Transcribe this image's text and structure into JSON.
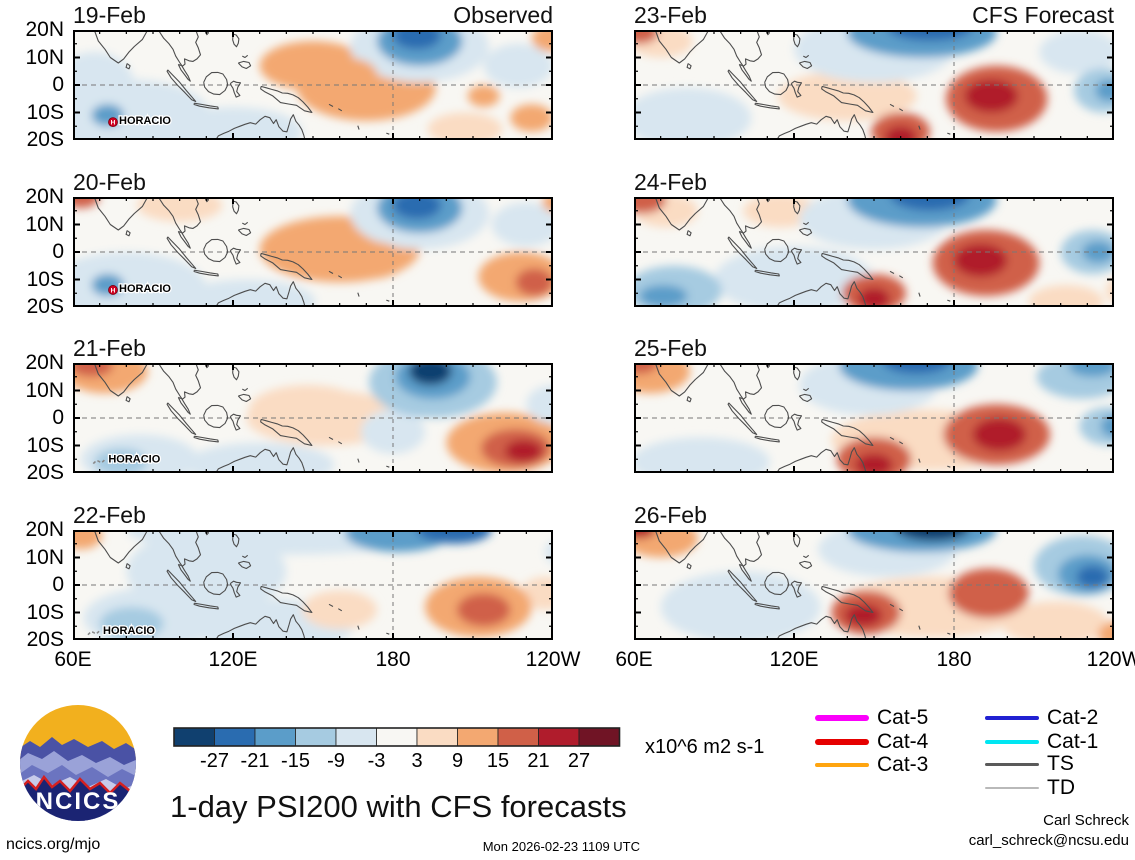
{
  "chart_data": {
    "type": "heatmap",
    "title": "1-day PSI200 with CFS forecasts",
    "field": "PSI200 anomaly",
    "units": "x10^6 m2 s-1",
    "column_headers": {
      "left": "Observed",
      "right": "CFS Forecast"
    },
    "lat_tick_labels": [
      "20N",
      "10N",
      "0",
      "10S",
      "20S"
    ],
    "lat_tick_values": [
      20,
      10,
      0,
      -10,
      -20
    ],
    "lon_tick_labels": [
      "60E",
      "120E",
      "180",
      "120W"
    ],
    "lon_tick_values": [
      60,
      120,
      180,
      240
    ],
    "lon_range_deg": [
      60,
      240
    ],
    "lat_range_deg": [
      -20,
      20
    ],
    "grid_dashed": {
      "equator": true,
      "dateline_180": true
    },
    "colorbar": {
      "levels": [
        -27,
        -21,
        -15,
        -9,
        -3,
        3,
        9,
        15,
        21,
        27
      ],
      "colors": [
        "#10406f",
        "#2a6cb0",
        "#5b9dc9",
        "#a6cbe1",
        "#d8e6f0",
        "#f8f7f3",
        "#fadcc3",
        "#f3a871",
        "#d06048",
        "#b01c2c",
        "#701425"
      ]
    },
    "panels": [
      {
        "date_label": "19-Feb",
        "corner_label": "Observed",
        "column": "left",
        "row": 0,
        "storms": [
          {
            "name": "HORACIO",
            "symbol": "hurricane",
            "lon": 75,
            "lat": -13.5
          }
        ],
        "anomaly_centers": [
          [
            82,
            -12,
            30,
            14,
            -9
          ],
          [
            73,
            -11,
            6,
            4,
            -18
          ],
          [
            120,
            -17,
            26,
            9,
            -6
          ],
          [
            68,
            0,
            15,
            12,
            -6
          ],
          [
            150,
            7,
            20,
            9,
            9
          ],
          [
            170,
            -1,
            26,
            12,
            9
          ],
          [
            162,
            4,
            12,
            6,
            12
          ],
          [
            207,
            -16,
            14,
            6,
            6
          ],
          [
            232,
            -12,
            8,
            5,
            12
          ],
          [
            214,
            -4,
            6,
            4,
            9
          ],
          [
            190,
            14,
            26,
            13,
            -9
          ],
          [
            190,
            16,
            16,
            9,
            -18
          ],
          [
            189,
            18,
            9,
            5,
            -27
          ],
          [
            227,
            7,
            13,
            8,
            -6
          ],
          [
            240,
            17,
            8,
            5,
            9
          ]
        ]
      },
      {
        "date_label": "20-Feb",
        "corner_label": "",
        "column": "left",
        "row": 1,
        "storms": [
          {
            "name": "HORACIO",
            "symbol": "hurricane",
            "lon": 75,
            "lat": -13.8
          }
        ],
        "anomaly_centers": [
          [
            80,
            -13,
            30,
            13,
            -9
          ],
          [
            73,
            -12,
            6,
            4,
            -18
          ],
          [
            63,
            20,
            7,
            4,
            15
          ],
          [
            100,
            17,
            16,
            6,
            6
          ],
          [
            125,
            -18,
            26,
            8,
            -6
          ],
          [
            160,
            1,
            30,
            12,
            9
          ],
          [
            170,
            -3,
            15,
            7,
            12
          ],
          [
            190,
            14,
            26,
            13,
            -9
          ],
          [
            190,
            16,
            16,
            9,
            -18
          ],
          [
            189,
            17,
            9,
            5,
            -27
          ],
          [
            228,
            -9,
            16,
            9,
            9
          ],
          [
            233,
            -11,
            7,
            5,
            15
          ],
          [
            230,
            10,
            13,
            8,
            -6
          ],
          [
            243,
            18,
            7,
            4,
            9
          ]
        ]
      },
      {
        "date_label": "21-Feb",
        "corner_label": "",
        "column": "left",
        "row": 2,
        "storms": [
          {
            "name": "HORACIO",
            "symbol": "track",
            "lon": 71,
            "lat": -15.5
          }
        ],
        "anomaly_centers": [
          [
            72,
            17,
            16,
            8,
            12
          ],
          [
            67,
            19,
            8,
            4,
            18
          ],
          [
            85,
            -15,
            22,
            9,
            -9
          ],
          [
            78,
            -16,
            10,
            5,
            -12
          ],
          [
            130,
            -17,
            28,
            8,
            -6
          ],
          [
            155,
            0,
            30,
            10,
            6
          ],
          [
            148,
            3,
            22,
            9,
            6
          ],
          [
            195,
            13,
            24,
            13,
            -12
          ],
          [
            195,
            15,
            14,
            8,
            -21
          ],
          [
            194,
            17,
            8,
            5,
            -30
          ],
          [
            222,
            -9,
            22,
            11,
            9
          ],
          [
            226,
            -11,
            13,
            7,
            15
          ],
          [
            229,
            -12,
            7,
            4,
            21
          ],
          [
            240,
            5,
            10,
            7,
            -9
          ],
          [
            180,
            -5,
            12,
            8,
            -6
          ]
        ]
      },
      {
        "date_label": "22-Feb",
        "corner_label": "",
        "column": "left",
        "row": 3,
        "storms": [
          {
            "name": "HORACIO",
            "symbol": "track",
            "lon": 69,
            "lat": -17
          }
        ],
        "anomaly_centers": [
          [
            63,
            18,
            8,
            5,
            9
          ],
          [
            90,
            -12,
            26,
            11,
            -9
          ],
          [
            82,
            -14,
            12,
            6,
            -12
          ],
          [
            140,
            20,
            60,
            9,
            -9
          ],
          [
            182,
            19,
            20,
            7,
            -18
          ],
          [
            203,
            20,
            14,
            5,
            -24
          ],
          [
            135,
            -15,
            30,
            10,
            -6
          ],
          [
            110,
            5,
            30,
            15,
            -6
          ],
          [
            160,
            -9,
            14,
            7,
            6
          ],
          [
            212,
            -8,
            20,
            11,
            12
          ],
          [
            214,
            -9,
            10,
            6,
            18
          ],
          [
            237,
            -3,
            9,
            6,
            6
          ],
          [
            243,
            12,
            6,
            5,
            -6
          ]
        ]
      },
      {
        "date_label": "23-Feb",
        "corner_label": "CFS Forecast",
        "column": "right",
        "row": 0,
        "storms": [],
        "anomaly_centers": [
          [
            62,
            19,
            7,
            4,
            15
          ],
          [
            70,
            16,
            12,
            6,
            6
          ],
          [
            80,
            -12,
            24,
            11,
            -9
          ],
          [
            150,
            13,
            30,
            12,
            -9
          ],
          [
            168,
            19,
            28,
            9,
            -18
          ],
          [
            171,
            21,
            16,
            5,
            -27
          ],
          [
            140,
            -4,
            26,
            9,
            6
          ],
          [
            160,
            -17,
            11,
            7,
            15
          ],
          [
            160,
            -19,
            6,
            4,
            24
          ],
          [
            196,
            -5,
            19,
            12,
            15
          ],
          [
            194,
            -4,
            10,
            6,
            24
          ],
          [
            227,
            12,
            15,
            8,
            -6
          ],
          [
            236,
            -2,
            11,
            8,
            -12
          ],
          [
            238,
            -2,
            5,
            4,
            -18
          ]
        ]
      },
      {
        "date_label": "24-Feb",
        "corner_label": "",
        "column": "right",
        "row": 1,
        "storms": [],
        "anomaly_centers": [
          [
            63,
            19,
            9,
            5,
            15
          ],
          [
            72,
            15,
            12,
            6,
            6
          ],
          [
            115,
            15,
            14,
            6,
            6
          ],
          [
            150,
            12,
            28,
            11,
            -9
          ],
          [
            168,
            19,
            28,
            10,
            -18
          ],
          [
            171,
            21,
            15,
            6,
            -27
          ],
          [
            75,
            -14,
            18,
            9,
            -12
          ],
          [
            71,
            -16,
            9,
            4,
            -18
          ],
          [
            120,
            -10,
            30,
            12,
            -6
          ],
          [
            150,
            -15,
            12,
            7,
            15
          ],
          [
            150,
            -17,
            6,
            4,
            21
          ],
          [
            192,
            -4,
            20,
            12,
            15
          ],
          [
            190,
            -3,
            10,
            6,
            24
          ],
          [
            232,
            0,
            12,
            8,
            -12
          ],
          [
            234,
            0,
            6,
            4,
            -18
          ],
          [
            222,
            -18,
            14,
            6,
            6
          ],
          [
            243,
            -14,
            6,
            5,
            6
          ]
        ]
      },
      {
        "date_label": "25-Feb",
        "corner_label": "",
        "column": "right",
        "row": 2,
        "storms": [],
        "anomaly_centers": [
          [
            66,
            17,
            15,
            8,
            12
          ],
          [
            62,
            20,
            7,
            4,
            18
          ],
          [
            85,
            -16,
            26,
            9,
            -6
          ],
          [
            148,
            12,
            26,
            11,
            -9
          ],
          [
            163,
            19,
            26,
            9,
            -18
          ],
          [
            166,
            21,
            13,
            5,
            -27
          ],
          [
            228,
            15,
            17,
            8,
            -12
          ],
          [
            232,
            19,
            9,
            4,
            -21
          ],
          [
            238,
            -3,
            11,
            7,
            -15
          ],
          [
            240,
            -3,
            5,
            4,
            -21
          ],
          [
            170,
            -8,
            36,
            11,
            6
          ],
          [
            150,
            -15,
            14,
            8,
            15
          ],
          [
            150,
            -17,
            7,
            4,
            24
          ],
          [
            196,
            -6,
            20,
            11,
            15
          ],
          [
            197,
            -6,
            10,
            6,
            24
          ]
        ]
      },
      {
        "date_label": "26-Feb",
        "corner_label": "",
        "column": "right",
        "row": 3,
        "storms": [],
        "anomaly_centers": [
          [
            62,
            20,
            6,
            3,
            21
          ],
          [
            70,
            17,
            14,
            7,
            9
          ],
          [
            155,
            13,
            26,
            10,
            -9
          ],
          [
            168,
            20,
            28,
            8,
            -21
          ],
          [
            172,
            21,
            14,
            5,
            -30
          ],
          [
            228,
            7,
            18,
            11,
            -12
          ],
          [
            230,
            4,
            11,
            7,
            -21
          ],
          [
            232,
            3,
            6,
            4,
            -27
          ],
          [
            147,
            -10,
            13,
            8,
            15
          ],
          [
            146,
            -11,
            7,
            4,
            24
          ],
          [
            193,
            -3,
            15,
            9,
            15
          ],
          [
            172,
            -8,
            36,
            11,
            6
          ],
          [
            100,
            -8,
            30,
            13,
            -6
          ],
          [
            242,
            -18,
            8,
            5,
            12
          ],
          [
            218,
            -14,
            20,
            8,
            6
          ]
        ]
      }
    ]
  },
  "legend": {
    "items": [
      {
        "label": "Cat-5",
        "color": "#fb00fb",
        "weight": 6,
        "col": 0
      },
      {
        "label": "Cat-4",
        "color": "#e60000",
        "weight": 5.5,
        "col": 0
      },
      {
        "label": "Cat-3",
        "color": "#ffa510",
        "weight": 4.5,
        "col": 0
      },
      {
        "label": "Cat-2",
        "color": "#2121d2",
        "weight": 4.5,
        "col": 1
      },
      {
        "label": "Cat-1",
        "color": "#00e6f2",
        "weight": 4,
        "col": 1
      },
      {
        "label": "TS",
        "color": "#5a5a5a",
        "weight": 3,
        "col": 1
      },
      {
        "label": "TD",
        "color": "#b9b9b9",
        "weight": 1.5,
        "col": 1
      }
    ]
  },
  "footer": {
    "title": "1-day PSI200 with CFS forecasts",
    "units_label": "x10^6 m2 s-1",
    "site_link": "ncics.org/mjo",
    "timestamp": "Mon 2026-02-23 1109 UTC",
    "credit_name": "Carl Schreck",
    "credit_email": "carl_schreck@ncsu.edu",
    "logo_text": "NCICS"
  }
}
